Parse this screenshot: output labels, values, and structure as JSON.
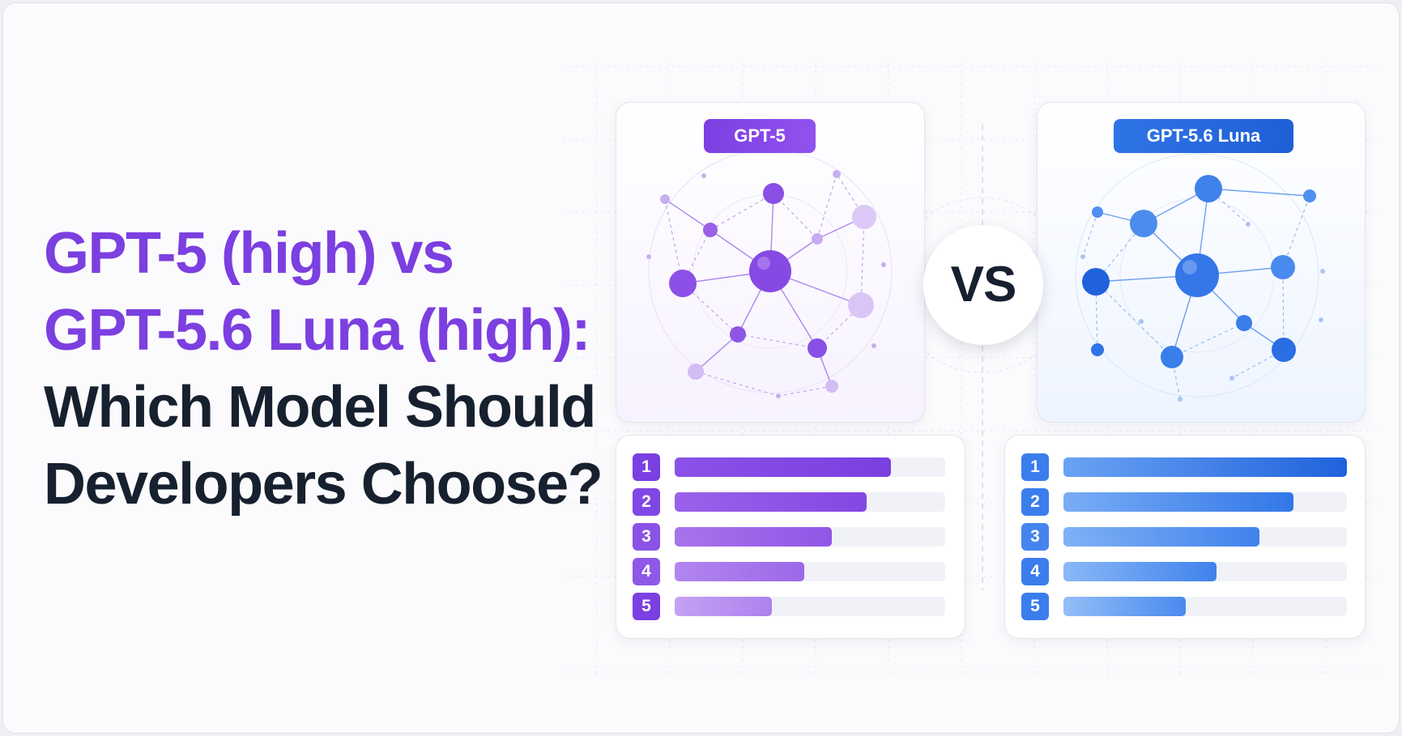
{
  "headline": {
    "line1": "GPT-5 (high) vs",
    "line2": "GPT-5.6 Luna (high):",
    "line3": "Which Model Should",
    "line4": "Developers Choose?"
  },
  "colors": {
    "purple_accent": "#7c3fe0",
    "blue_accent": "#2f74e6",
    "headline_dark": "#17202e"
  },
  "left_model": {
    "label": "GPT-5",
    "icon": "network-graph-icon",
    "rankings": [
      {
        "rank": "1",
        "level": 0.8
      },
      {
        "rank": "2",
        "level": 0.71
      },
      {
        "rank": "3",
        "level": 0.58
      },
      {
        "rank": "4",
        "level": 0.48
      },
      {
        "rank": "5",
        "level": 0.36
      }
    ]
  },
  "vs_label": "VS",
  "right_model": {
    "label": "GPT-5.6 Luna",
    "icon": "network-graph-icon",
    "rankings": [
      {
        "rank": "1",
        "level": 1.0
      },
      {
        "rank": "2",
        "level": 0.81
      },
      {
        "rank": "3",
        "level": 0.69
      },
      {
        "rank": "4",
        "level": 0.54
      },
      {
        "rank": "5",
        "level": 0.43
      }
    ]
  }
}
